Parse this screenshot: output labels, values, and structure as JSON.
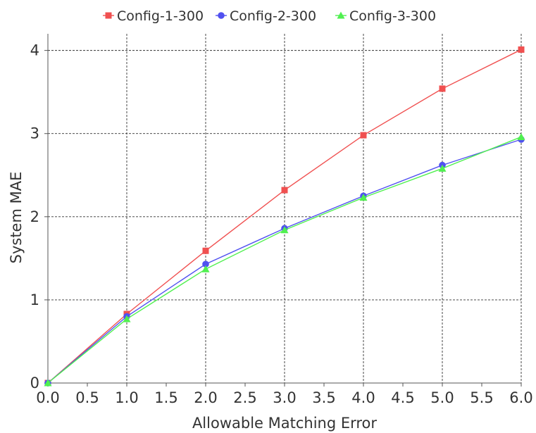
{
  "chart_data": {
    "type": "line",
    "title": "",
    "xlabel": "Allowable Matching Error",
    "ylabel": "System MAE",
    "xlim": [
      0.0,
      6.0
    ],
    "ylim": [
      0,
      4.2
    ],
    "x_ticks": [
      "0.0",
      "0.5",
      "1.0",
      "1.5",
      "2.0",
      "2.5",
      "3.0",
      "3.5",
      "4.0",
      "4.5",
      "5.0",
      "5.5",
      "6.0"
    ],
    "y_ticks": [
      "0",
      "1",
      "2",
      "3",
      "4"
    ],
    "grid": true,
    "legend_position": "top-center",
    "x": [
      0.0,
      1.0,
      2.0,
      3.0,
      4.0,
      5.0,
      6.0
    ],
    "series": [
      {
        "name": "Config-1-300",
        "color": "#f05050",
        "marker": "square",
        "values": [
          0.0,
          0.83,
          1.59,
          2.32,
          2.98,
          3.54,
          4.01
        ]
      },
      {
        "name": "Config-2-300",
        "color": "#5050f0",
        "marker": "circle",
        "values": [
          0.0,
          0.8,
          1.43,
          1.86,
          2.25,
          2.62,
          2.93
        ]
      },
      {
        "name": "Config-3-300",
        "color": "#50f050",
        "marker": "triangle",
        "values": [
          0.0,
          0.77,
          1.37,
          1.84,
          2.23,
          2.58,
          2.96
        ]
      }
    ]
  }
}
